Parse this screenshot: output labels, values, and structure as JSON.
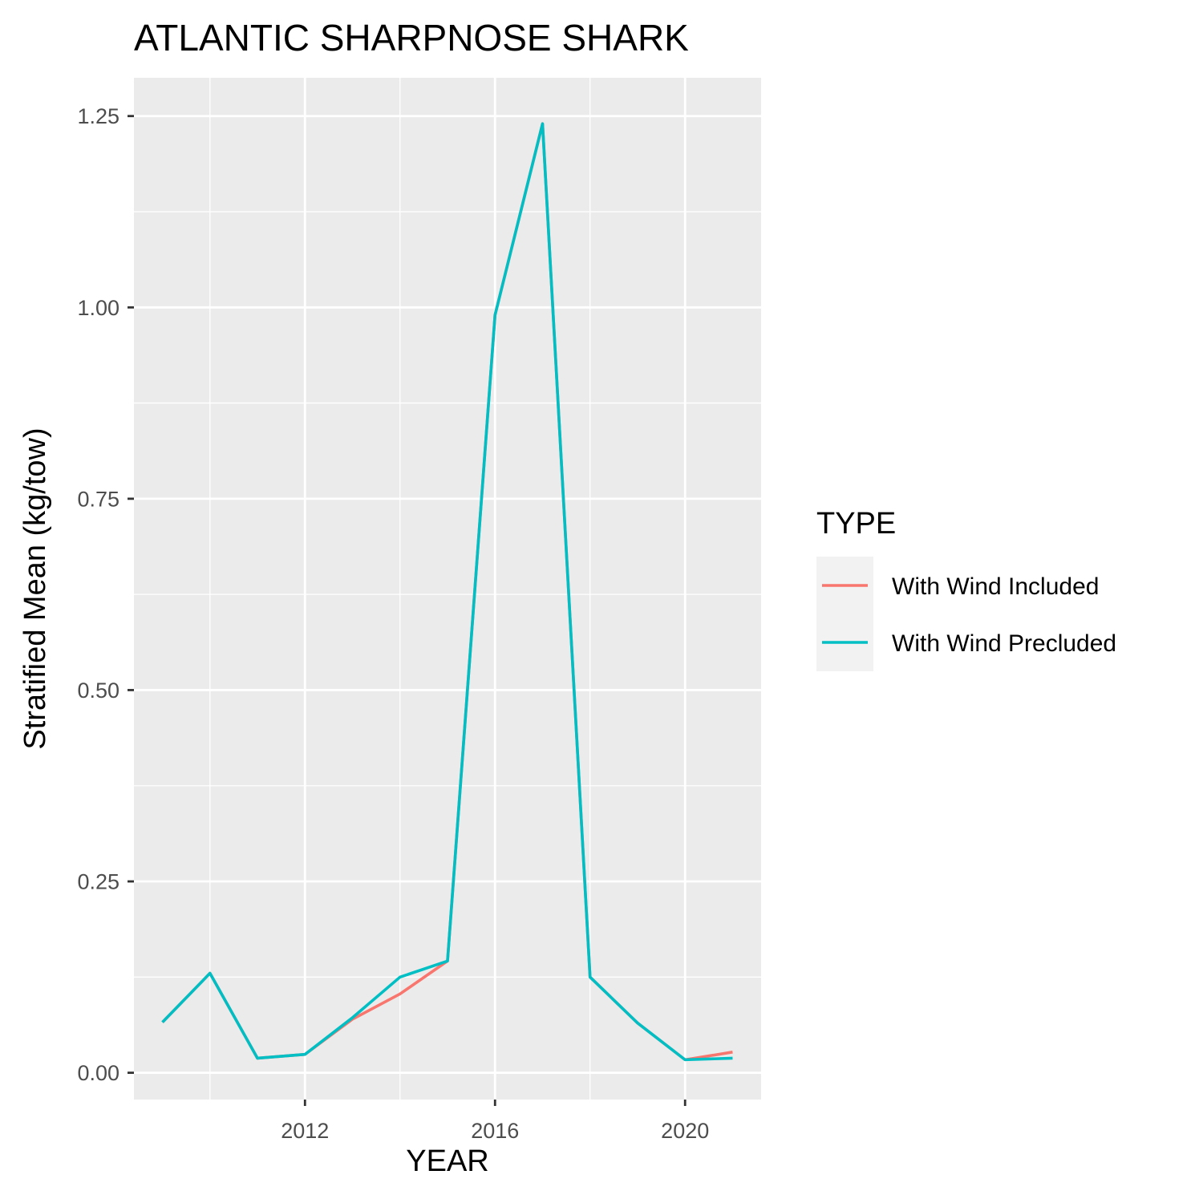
{
  "chart_data": {
    "type": "line",
    "title": "ATLANTIC SHARPNOSE SHARK",
    "xlabel": "YEAR",
    "ylabel": "Stratified Mean (kg/tow)",
    "x": [
      2009,
      2010,
      2011,
      2012,
      2013,
      2014,
      2015,
      2016,
      2017,
      2018,
      2019,
      2020,
      2021
    ],
    "xlim": [
      2008.4,
      2021.6
    ],
    "ylim": [
      -0.035,
      1.3
    ],
    "x_ticks": [
      2012,
      2016,
      2020
    ],
    "x_tick_labels": [
      "2012",
      "2016",
      "2020"
    ],
    "y_ticks": [
      0,
      0.25,
      0.5,
      0.75,
      1.0,
      1.25
    ],
    "y_tick_labels": [
      "0.00",
      "0.25",
      "0.50",
      "0.75",
      "1.00",
      "1.25"
    ],
    "grid": true,
    "legend": {
      "title": "TYPE",
      "position": "right"
    },
    "series": [
      {
        "name": "With Wind Included",
        "color": "#F8766D",
        "values": [
          0.066,
          0.13,
          0.019,
          0.024,
          0.07,
          0.103,
          0.146,
          0.99,
          1.24,
          0.125,
          0.065,
          0.017,
          0.027
        ]
      },
      {
        "name": "With Wind Precluded",
        "color": "#00BFC4",
        "values": [
          0.066,
          0.13,
          0.019,
          0.024,
          0.072,
          0.125,
          0.146,
          0.99,
          1.24,
          0.125,
          0.065,
          0.017,
          0.019
        ]
      }
    ]
  }
}
